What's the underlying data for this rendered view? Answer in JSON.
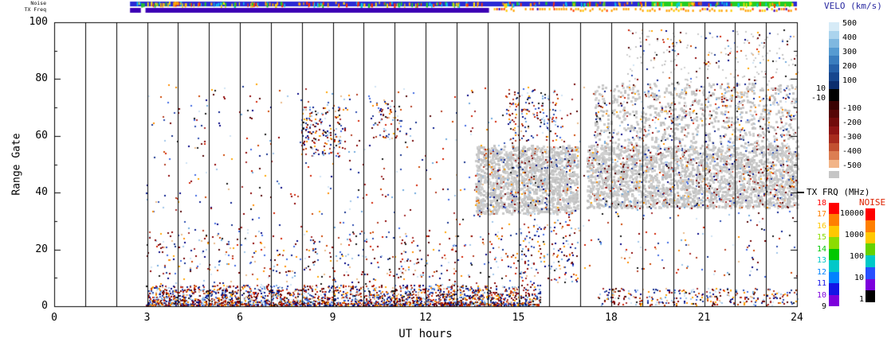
{
  "chart_data": {
    "type": "scatter",
    "title": "",
    "xlabel": "UT hours",
    "ylabel": "Range Gate",
    "xlim": [
      0,
      24
    ],
    "ylim": [
      0,
      100
    ],
    "x_ticks": [
      "0",
      "3",
      "6",
      "9",
      "12",
      "15",
      "18",
      "21",
      "24"
    ],
    "x_tick_hours": [
      0,
      3,
      6,
      9,
      12,
      15,
      18,
      21,
      24
    ],
    "y_ticks": [
      "0",
      "20",
      "40",
      "60",
      "80",
      "100"
    ],
    "y_tick_gates": [
      0,
      20,
      40,
      60,
      80,
      100
    ],
    "hour_lines": [
      1,
      2,
      3,
      4,
      5,
      6,
      7,
      8,
      9,
      10,
      11,
      12,
      13,
      14,
      15,
      16,
      17,
      18,
      19,
      20,
      21,
      22,
      23
    ],
    "grid": "vertical-hour-lines",
    "legend_position": "right",
    "strips": {
      "noise": {
        "label": "Noise",
        "base_color": "#2A2AD4",
        "start_hour": 2.45,
        "end_hour": 24,
        "green_color": "#22CC22",
        "green_segments": [
          [
            19.3,
            20.6
          ],
          [
            21.85,
            23.85
          ]
        ],
        "speck_colors": [
          "#FFA500",
          "#FF3300",
          "#22CC22",
          "#00CCEE",
          "#FFE000"
        ],
        "speck_count": 260
      },
      "tx_freq": {
        "label": "TX Freq",
        "solid_color": "#3C00B4",
        "lead_range": [
          2.45,
          2.8
        ],
        "solid_range": [
          2.95,
          14.05
        ],
        "dotted_range": [
          14.05,
          24
        ],
        "dot_colors": [
          "#FFA000",
          "#FFA000",
          "#FFA000",
          "#FFC800",
          "#FF4400"
        ],
        "dot_prob": 0.62
      }
    },
    "colorbars": {
      "velocity": {
        "title": "VELO (km/s)",
        "title_color": "#2828A0",
        "upper_labels": [
          "500",
          "400",
          "300",
          "200",
          "100"
        ],
        "middle_labels": [
          "10",
          "-10"
        ],
        "lower_labels": [
          "-100",
          "-200",
          "-300",
          "-400",
          "-500"
        ],
        "upper_colors": [
          "#D6EBF7",
          "#ABD4EE",
          "#7FB8E0",
          "#569BD1",
          "#3A7DBE",
          "#2660A8",
          "#17468E",
          "#0B2D6E"
        ],
        "middle_color": "#000000",
        "lower_colors": [
          "#3A0303",
          "#560606",
          "#720B0B",
          "#8E1414",
          "#A82B1E",
          "#C25030",
          "#DC7E52",
          "#F2B487"
        ],
        "ground_color": "#C6C6C6"
      },
      "tx_freq": {
        "title": "TX FRQ (MHz)",
        "title_color": "#000000",
        "labels": [
          "18",
          "17",
          "16",
          "15",
          "14",
          "13",
          "12",
          "11",
          "10",
          "9"
        ],
        "segment_colors": [
          "#FF0000",
          "#FF7F00",
          "#FFC800",
          "#8CDC00",
          "#00C800",
          "#00C8C8",
          "#0082FF",
          "#1414E6",
          "#7D00DC"
        ],
        "label_colors": [
          "#FF0000",
          "#FF7F00",
          "#FFC800",
          "#8CDC00",
          "#00C800",
          "#00C8C8",
          "#0082FF",
          "#1414E6",
          "#7D00DC",
          "#000000"
        ]
      },
      "noise": {
        "title": "NOISE",
        "title_color": "#DD2200",
        "labels": [
          "10000",
          "1000",
          "100",
          "10",
          "1"
        ],
        "segment_colors": [
          "#FF0000",
          "#FF7F00",
          "#FFC800",
          "#64D200",
          "#00C8C8",
          "#2850FF",
          "#7D00DC",
          "#000000"
        ]
      }
    },
    "palettes": {
      "mix": [
        "#000080",
        "#0A1E8C",
        "#16308C",
        "#2B4BAF",
        "#4169E1",
        "#6FA8DC",
        "#9FC5E8",
        "#CFE2F3",
        "#8B0000",
        "#700000",
        "#520000",
        "#A52A2A",
        "#B23B20",
        "#CC4400",
        "#FF8C00",
        "#FFA500",
        "#D22000",
        "#141414",
        "#E8B888"
      ],
      "gray": [
        "#C8C8C8",
        "#C0C0C0",
        "#D0D0D0"
      ]
    },
    "scatter_regions": [
      {
        "h": [
          2.95,
          15.7
        ],
        "g": [
          0,
          7
        ],
        "n": 2600,
        "palette": "mix",
        "bias": true,
        "size": 2
      },
      {
        "h": [
          2.95,
          15.7
        ],
        "g": [
          6,
          26
        ],
        "n": 380,
        "palette": "mix",
        "size": 2
      },
      {
        "h": [
          2.95,
          24
        ],
        "g": [
          10,
          78
        ],
        "n": 820,
        "palette": "mix",
        "size": 2
      },
      {
        "h": [
          7.9,
          9.4
        ],
        "g": [
          52,
          70
        ],
        "n": 170,
        "palette": "mix",
        "size": 2
      },
      {
        "h": [
          13.6,
          16.9
        ],
        "g": [
          32,
          56
        ],
        "n": 1500,
        "palette": "gray",
        "size": 3
      },
      {
        "h": [
          13.6,
          16.9
        ],
        "g": [
          32,
          56
        ],
        "n": 220,
        "palette": "mix",
        "size": 2
      },
      {
        "h": [
          17.2,
          24
        ],
        "g": [
          34,
          56
        ],
        "n": 2300,
        "palette": "gray",
        "size": 3
      },
      {
        "h": [
          17.2,
          24
        ],
        "g": [
          34,
          56
        ],
        "n": 380,
        "palette": "mix",
        "size": 2
      },
      {
        "h": [
          17.4,
          24
        ],
        "g": [
          56,
          78
        ],
        "n": 650,
        "palette": "gray",
        "size": 3
      },
      {
        "h": [
          17.4,
          24
        ],
        "g": [
          56,
          78
        ],
        "n": 260,
        "palette": "mix",
        "size": 2
      },
      {
        "h": [
          18.5,
          24
        ],
        "g": [
          78,
          97
        ],
        "n": 130,
        "palette": "gray",
        "size": 2
      },
      {
        "h": [
          18.5,
          24
        ],
        "g": [
          78,
          97
        ],
        "n": 110,
        "palette": "mix",
        "size": 2
      },
      {
        "h": [
          14.6,
          16.4
        ],
        "g": [
          58,
          76
        ],
        "n": 150,
        "palette": "mix",
        "size": 2
      },
      {
        "h": [
          17.5,
          24
        ],
        "g": [
          0,
          6
        ],
        "n": 320,
        "palette": "mix",
        "size": 2
      },
      {
        "h": [
          15.0,
          16.9
        ],
        "g": [
          8,
          30
        ],
        "n": 130,
        "palette": "mix",
        "size": 2
      },
      {
        "h": [
          10.2,
          11.2
        ],
        "g": [
          58,
          72
        ],
        "n": 70,
        "palette": "mix",
        "size": 2
      }
    ]
  }
}
